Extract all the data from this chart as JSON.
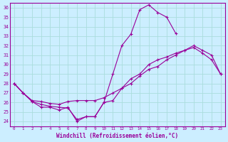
{
  "xlabel": "Windchill (Refroidissement éolien,°C)",
  "bg_color": "#cceeff",
  "line_color": "#990099",
  "grid_color": "#aadddd",
  "xlim": [
    -0.5,
    23.5
  ],
  "ylim": [
    23.5,
    36.5
  ],
  "xticks": [
    0,
    1,
    2,
    3,
    4,
    5,
    6,
    7,
    8,
    9,
    10,
    11,
    12,
    13,
    14,
    15,
    16,
    17,
    18,
    19,
    20,
    21,
    22,
    23
  ],
  "yticks": [
    24,
    25,
    26,
    27,
    28,
    29,
    30,
    31,
    32,
    33,
    34,
    35,
    36
  ],
  "hours": [
    0,
    1,
    2,
    3,
    4,
    5,
    6,
    7,
    8,
    9,
    10,
    11,
    12,
    13,
    14,
    15,
    16,
    17,
    18,
    19,
    20,
    21,
    22,
    23
  ],
  "line1": [
    28.0,
    27.0,
    26.1,
    25.5,
    25.5,
    25.2,
    25.5,
    24.0,
    24.5,
    24.5,
    26.0,
    29.0,
    32.0,
    33.2,
    35.8,
    36.3,
    35.5,
    35.0,
    33.3,
    null,
    null,
    null,
    null,
    null
  ],
  "line2": [
    28.0,
    27.0,
    26.1,
    25.8,
    25.6,
    25.5,
    25.4,
    24.2,
    24.5,
    24.5,
    26.0,
    26.2,
    27.5,
    28.5,
    29.0,
    30.0,
    30.5,
    30.8,
    31.2,
    31.5,
    31.8,
    31.2,
    30.5,
    29.0
  ],
  "line3": [
    28.0,
    27.0,
    26.2,
    26.1,
    25.9,
    25.8,
    26.1,
    26.2,
    26.2,
    26.2,
    26.5,
    27.0,
    27.5,
    28.0,
    28.8,
    29.5,
    29.8,
    30.5,
    31.0,
    31.5,
    32.0,
    31.5,
    31.0,
    29.0
  ]
}
